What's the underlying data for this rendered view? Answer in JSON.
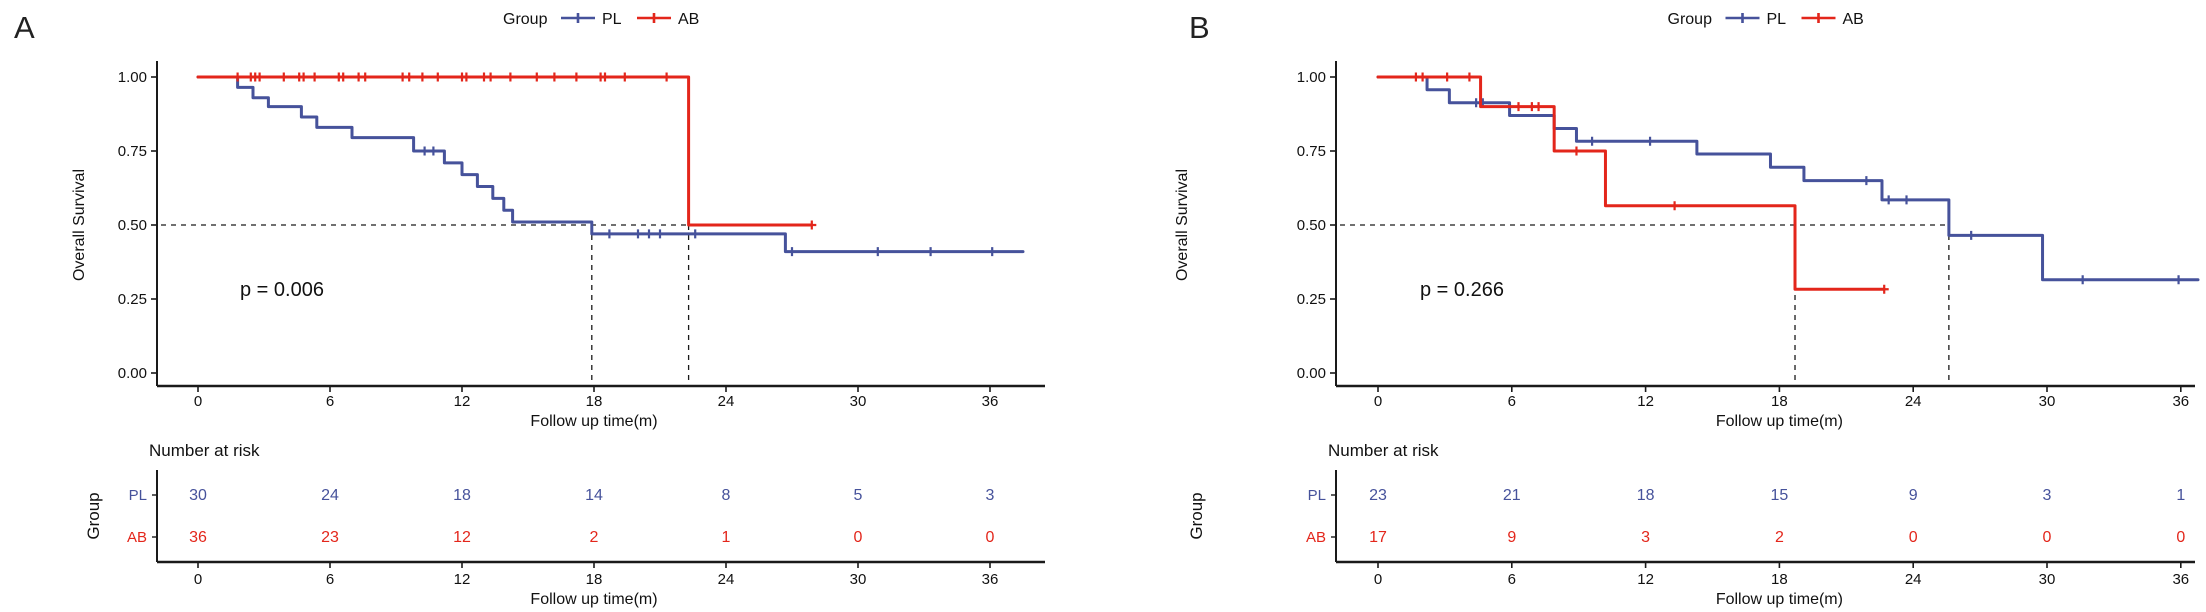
{
  "chart_data": [
    {
      "type": "line",
      "panel_label": "A",
      "legend": {
        "title": "Group",
        "entries": [
          {
            "label": "PL",
            "color": "#46529B"
          },
          {
            "label": "AB",
            "color": "#E3261B"
          }
        ]
      },
      "xlabel": "Follow up time(m)",
      "ylabel": "Overall Survival",
      "xlim": [
        0,
        38.5
      ],
      "ylim": [
        0,
        1
      ],
      "xticks": [
        0,
        6,
        12,
        18,
        24,
        30,
        36
      ],
      "yticks": [
        "0.00",
        "0.25",
        "0.50",
        "0.75",
        "1.00"
      ],
      "pvalue": "p = 0.006",
      "median_guides": {
        "survival": 0.5,
        "times": [
          17.9,
          22.3
        ],
        "hline_end": 22.3
      },
      "series": [
        {
          "name": "PL",
          "color": "#46529B",
          "steps": [
            [
              0,
              1.0
            ],
            [
              1.8,
              0.965
            ],
            [
              2.5,
              0.93
            ],
            [
              3.2,
              0.9
            ],
            [
              4.7,
              0.865
            ],
            [
              5.4,
              0.83
            ],
            [
              7.0,
              0.795
            ],
            [
              9.8,
              0.75
            ],
            [
              11.2,
              0.71
            ],
            [
              12.0,
              0.67
            ],
            [
              12.7,
              0.63
            ],
            [
              13.4,
              0.59
            ],
            [
              13.9,
              0.55
            ],
            [
              14.3,
              0.51
            ],
            [
              17.9,
              0.47
            ],
            [
              26.7,
              0.41
            ]
          ],
          "end_time": 37.5,
          "censors": [
            [
              10.3,
              0.75
            ],
            [
              10.7,
              0.75
            ],
            [
              18.7,
              0.47
            ],
            [
              20.0,
              0.47
            ],
            [
              20.5,
              0.47
            ],
            [
              21.0,
              0.47
            ],
            [
              22.6,
              0.47
            ],
            [
              27.0,
              0.41
            ],
            [
              30.9,
              0.41
            ],
            [
              33.3,
              0.41
            ],
            [
              36.1,
              0.41
            ]
          ]
        },
        {
          "name": "AB",
          "color": "#E3261B",
          "steps": [
            [
              0,
              1.0
            ],
            [
              22.3,
              0.5
            ]
          ],
          "end_time": 27.9,
          "censors": [
            [
              1.8,
              1.0
            ],
            [
              2.4,
              1.0
            ],
            [
              2.6,
              1.0
            ],
            [
              2.8,
              1.0
            ],
            [
              3.9,
              1.0
            ],
            [
              4.6,
              1.0
            ],
            [
              4.8,
              1.0
            ],
            [
              5.3,
              1.0
            ],
            [
              6.4,
              1.0
            ],
            [
              6.6,
              1.0
            ],
            [
              7.3,
              1.0
            ],
            [
              7.6,
              1.0
            ],
            [
              9.3,
              1.0
            ],
            [
              9.6,
              1.0
            ],
            [
              10.2,
              1.0
            ],
            [
              10.9,
              1.0
            ],
            [
              12.0,
              1.0
            ],
            [
              12.2,
              1.0
            ],
            [
              13.0,
              1.0
            ],
            [
              13.3,
              1.0
            ],
            [
              14.2,
              1.0
            ],
            [
              15.4,
              1.0
            ],
            [
              16.2,
              1.0
            ],
            [
              17.2,
              1.0
            ],
            [
              18.3,
              1.0
            ],
            [
              18.5,
              1.0
            ],
            [
              19.4,
              1.0
            ],
            [
              21.3,
              1.0
            ],
            [
              27.9,
              0.5
            ]
          ]
        }
      ],
      "risk_table": {
        "title": "Number at risk",
        "ylabel": "Group",
        "xlabel": "Follow up time(m)",
        "times": [
          0,
          6,
          12,
          18,
          24,
          30,
          36
        ],
        "rows": [
          {
            "name": "PL",
            "color": "#46529B",
            "values": [
              30,
              24,
              18,
              14,
              8,
              5,
              3
            ]
          },
          {
            "name": "AB",
            "color": "#E3261B",
            "values": [
              36,
              23,
              12,
              2,
              1,
              0,
              0
            ]
          }
        ]
      }
    },
    {
      "type": "line",
      "panel_label": "B",
      "legend": {
        "title": "Group",
        "entries": [
          {
            "label": "PL",
            "color": "#46529B"
          },
          {
            "label": "AB",
            "color": "#E3261B"
          }
        ]
      },
      "xlabel": "Follow up time(m)",
      "ylabel": "Overall Survival",
      "xlim": [
        0,
        38.5
      ],
      "ylim": [
        0,
        1
      ],
      "xticks": [
        0,
        6,
        12,
        18,
        24,
        30,
        36
      ],
      "yticks": [
        "0.00",
        "0.25",
        "0.50",
        "0.75",
        "1.00"
      ],
      "pvalue": "p = 0.266",
      "median_guides": {
        "survival": 0.5,
        "times": [
          18.7,
          25.6
        ],
        "hline_end": 25.6
      },
      "series": [
        {
          "name": "PL",
          "color": "#46529B",
          "steps": [
            [
              0,
              1.0
            ],
            [
              2.2,
              0.957
            ],
            [
              3.2,
              0.913
            ],
            [
              5.9,
              0.87
            ],
            [
              7.9,
              0.826
            ],
            [
              8.9,
              0.783
            ],
            [
              14.3,
              0.74
            ],
            [
              17.6,
              0.695
            ],
            [
              19.1,
              0.65
            ],
            [
              22.6,
              0.585
            ],
            [
              25.6,
              0.465
            ],
            [
              29.8,
              0.315
            ]
          ],
          "end_time": 36.8,
          "censors": [
            [
              4.4,
              0.913
            ],
            [
              4.7,
              0.913
            ],
            [
              9.6,
              0.783
            ],
            [
              12.2,
              0.783
            ],
            [
              21.9,
              0.65
            ],
            [
              22.9,
              0.585
            ],
            [
              23.7,
              0.585
            ],
            [
              26.6,
              0.465
            ],
            [
              31.6,
              0.315
            ],
            [
              35.9,
              0.315
            ]
          ]
        },
        {
          "name": "AB",
          "color": "#E3261B",
          "steps": [
            [
              0,
              1.0
            ],
            [
              4.6,
              0.9
            ],
            [
              7.9,
              0.75
            ],
            [
              10.2,
              0.565
            ],
            [
              18.7,
              0.283
            ]
          ],
          "end_time": 22.7,
          "censors": [
            [
              1.7,
              1.0
            ],
            [
              2.0,
              1.0
            ],
            [
              3.1,
              1.0
            ],
            [
              4.1,
              1.0
            ],
            [
              6.3,
              0.9
            ],
            [
              6.9,
              0.9
            ],
            [
              7.2,
              0.9
            ],
            [
              8.9,
              0.75
            ],
            [
              13.3,
              0.565
            ],
            [
              22.7,
              0.283
            ]
          ]
        }
      ],
      "risk_table": {
        "title": "Number at risk",
        "ylabel": "Group",
        "xlabel": "Follow up time(m)",
        "times": [
          0,
          6,
          12,
          18,
          24,
          30,
          36
        ],
        "rows": [
          {
            "name": "PL",
            "color": "#46529B",
            "values": [
              23,
              21,
              18,
              15,
              9,
              3,
              1
            ]
          },
          {
            "name": "AB",
            "color": "#E3261B",
            "values": [
              17,
              9,
              3,
              2,
              0,
              0,
              0
            ]
          }
        ]
      }
    }
  ]
}
